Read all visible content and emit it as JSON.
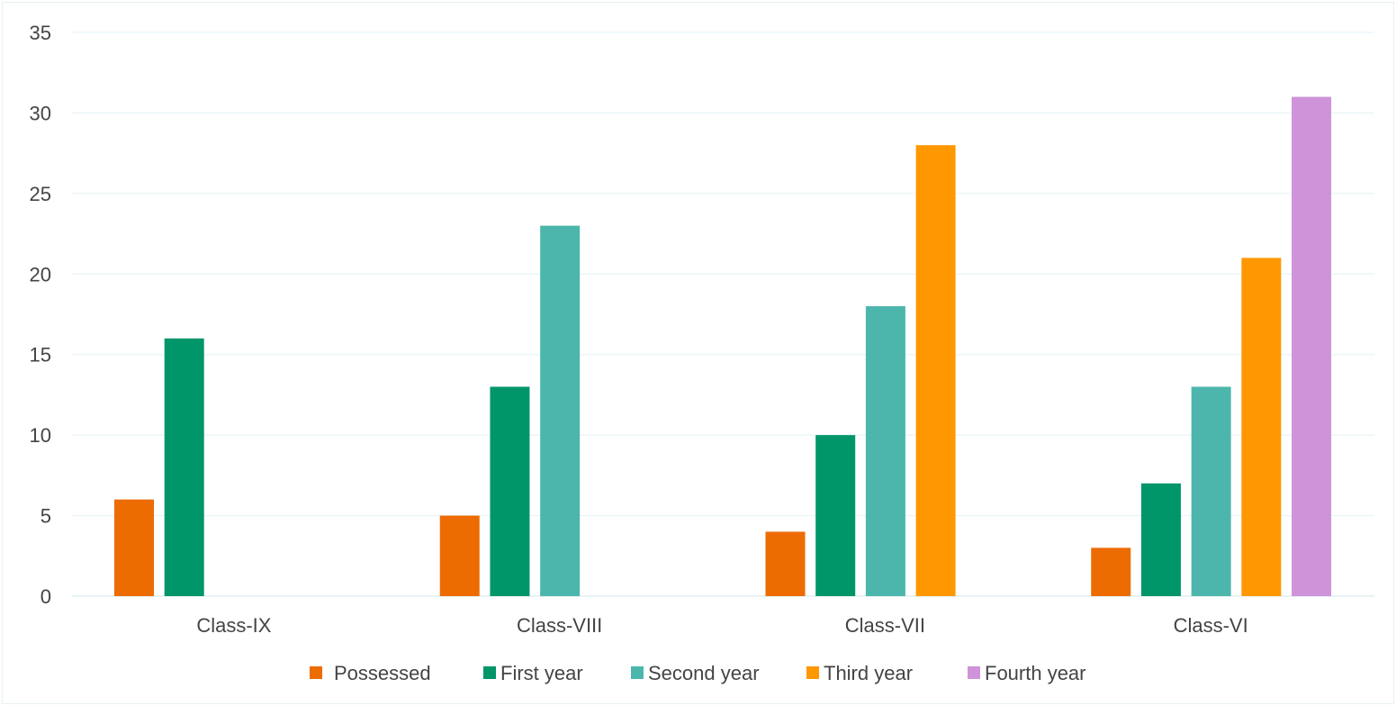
{
  "chart_data": {
    "type": "bar",
    "categories": [
      "Class-IX",
      "Class-VIII",
      "Class-VII",
      "Class-VI"
    ],
    "series": [
      {
        "name": "Possessed",
        "color": "#ED6C02",
        "values": [
          6,
          5,
          4,
          3
        ]
      },
      {
        "name": "First year",
        "color": "#00966A",
        "values": [
          16,
          13,
          10,
          7
        ]
      },
      {
        "name": "Second year",
        "color": "#4DB6AC",
        "values": [
          null,
          23,
          18,
          13
        ]
      },
      {
        "name": "Third year",
        "color": "#FF9800",
        "values": [
          null,
          null,
          28,
          21
        ]
      },
      {
        "name": "Fourth year",
        "color": "#CE93D8",
        "values": [
          null,
          null,
          null,
          31
        ]
      }
    ],
    "ylim": [
      0,
      35
    ],
    "yticks": [
      0,
      5,
      10,
      15,
      20,
      25,
      30,
      35
    ],
    "grid": true,
    "legend_position": "bottom",
    "title": "",
    "xlabel": "",
    "ylabel": ""
  }
}
